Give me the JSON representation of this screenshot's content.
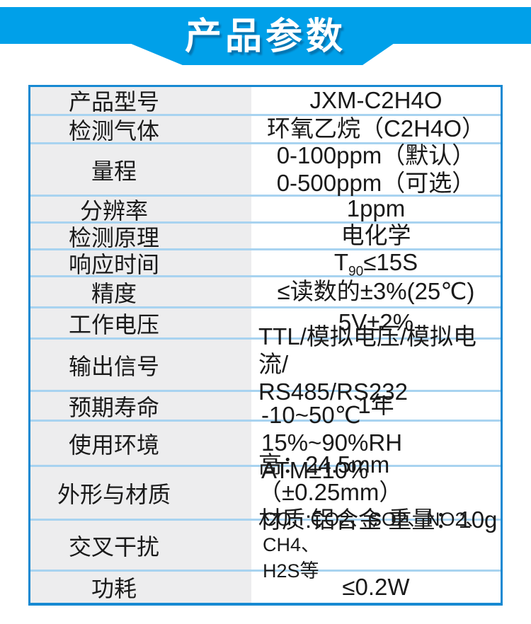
{
  "header": {
    "title": "产品参数"
  },
  "colors": {
    "banner_blue": "#00a0e9",
    "table_border": "#1789d2",
    "row_divider": "#a8d3f0",
    "label_bg": "#ededee",
    "title_color": "#ffffff",
    "text_color": "#1a1a1a"
  },
  "table": {
    "rows": [
      {
        "label": "产品型号",
        "lines": [
          "JXM-C2H4O"
        ]
      },
      {
        "label": "检测气体",
        "lines": [
          "环氧乙烷（C2H4O）"
        ]
      },
      {
        "label": "量程",
        "lines": [
          "0-100ppm（默认）",
          "0-500ppm（可选）"
        ]
      },
      {
        "label": "分辨率",
        "lines": [
          "1ppm"
        ]
      },
      {
        "label": "检测原理",
        "lines": [
          "电化学"
        ]
      },
      {
        "label": "响应时间",
        "value": {
          "prefix": "T",
          "sub": "90",
          "rest": "≤15S"
        }
      },
      {
        "label": "精度",
        "lines": [
          "≤读数的±3%(25℃)"
        ]
      },
      {
        "label": "工作电压",
        "lines": [
          "5V±2%"
        ]
      },
      {
        "label": "输出信号",
        "lines": [
          "TTL/模拟电压/模拟电流/",
          "RS485/RS232"
        ]
      },
      {
        "label": "预期寿命",
        "lines": [
          "1年"
        ]
      },
      {
        "label": "使用环境",
        "lines": [
          "-10~50℃ 15%~90%RH",
          "ATM±10%"
        ]
      },
      {
        "label": "外形与材质",
        "lines": [
          "高：24.5mm（±0.25mm）",
          "材质:铝合金 重量：10g"
        ]
      },
      {
        "label": "交叉干扰",
        "lines": [
          "CO、CO2、SO2、NO2、CH4、",
          "H2S等"
        ]
      },
      {
        "label": "功耗",
        "lines": [
          "≤0.2W"
        ]
      }
    ]
  }
}
